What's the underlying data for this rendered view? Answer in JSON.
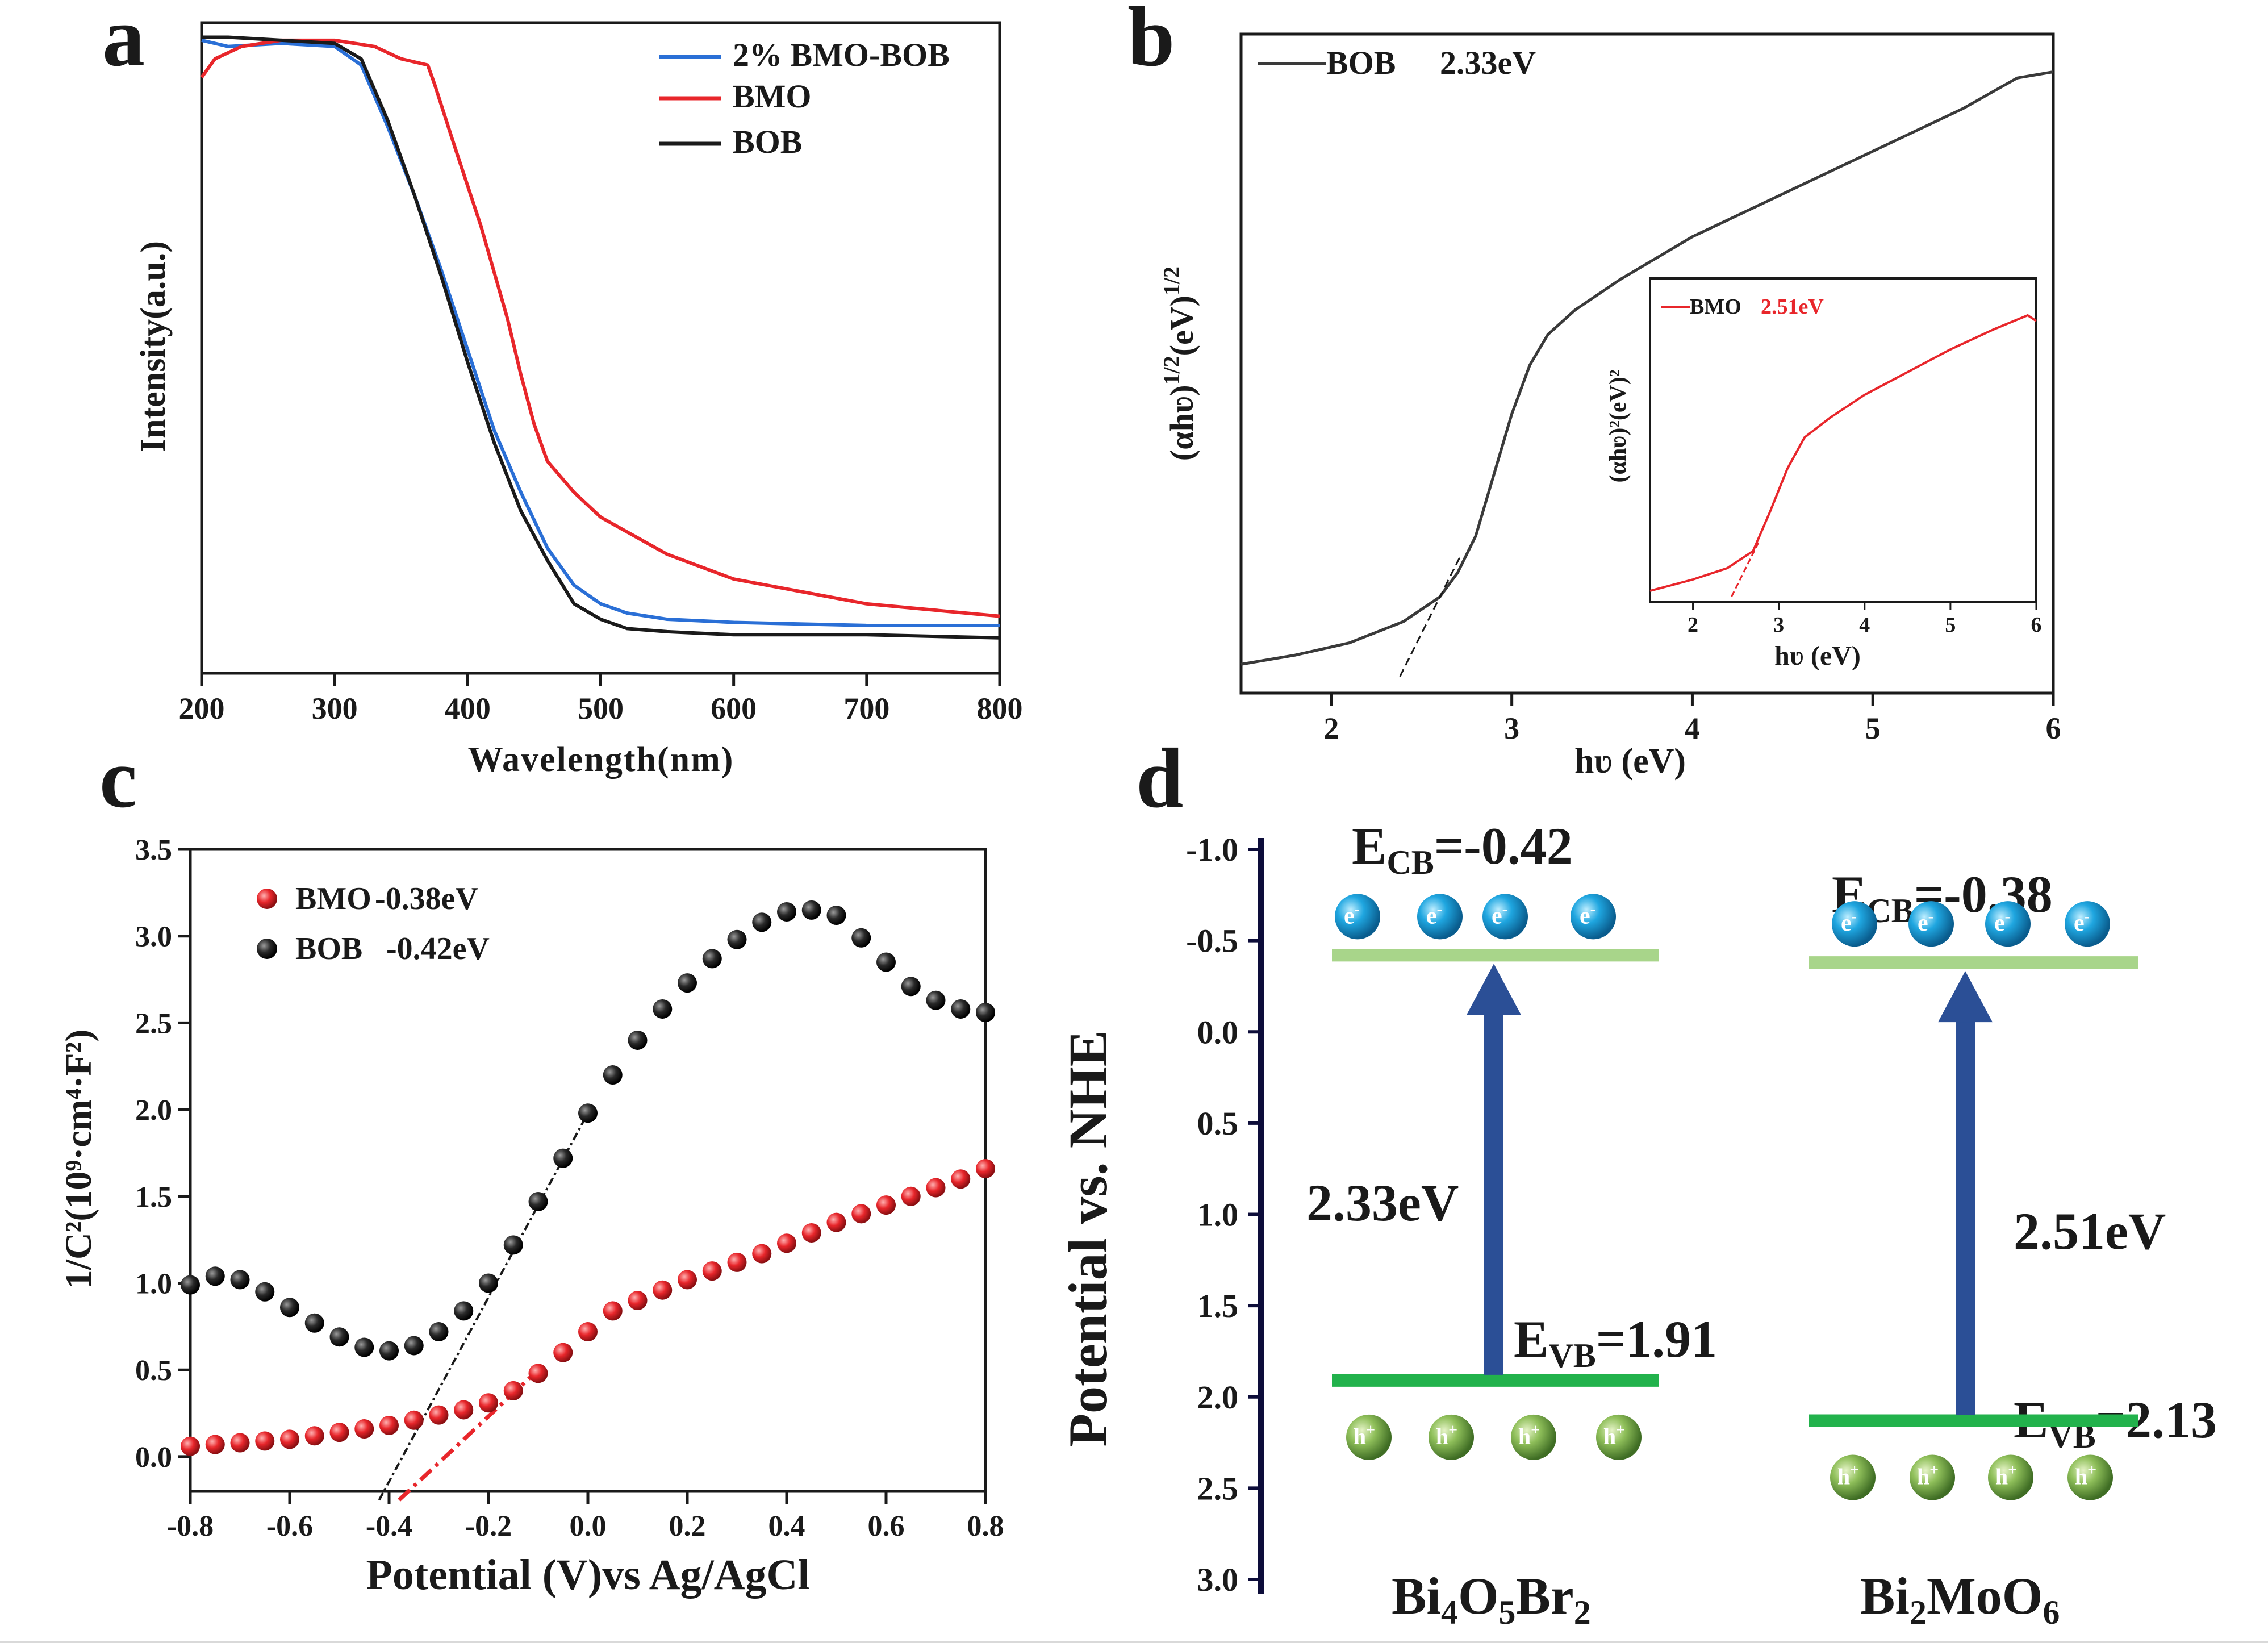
{
  "colors": {
    "blue": "#2a6fd6",
    "red": "#e8262b",
    "black": "#1a1a1a",
    "gray": "#3a3a3a",
    "band": "#a8d58a",
    "band2": "#22b24c",
    "arrow": "#2b4f96",
    "electron": "#1fa6e0",
    "hole": "#7fb24a"
  },
  "panels": {
    "a": {
      "label": "a",
      "ylabel": "Intensity(a.u.)",
      "xlabel": "Wavelength(nm)",
      "xticks": [
        "200",
        "300",
        "400",
        "500",
        "600",
        "700",
        "800"
      ]
    },
    "b": {
      "label": "b",
      "ylabel_main": "(αhʋ)",
      "ylabel_exp": "1/2",
      "ylabel_unit": "(eV)",
      "ylabel_exp2": "1/2",
      "xlabel": "hʋ (eV)",
      "xticks": [
        "2",
        "3",
        "4",
        "5",
        "6"
      ],
      "legend": "BOB",
      "legend_value": "2.33eV",
      "inset": {
        "legend": "BMO",
        "legend_value": "2.51eV",
        "ylabel": "(αhʋ)²(eV)²",
        "xlabel": "hʋ (eV)",
        "xticks": [
          "2",
          "3",
          "4",
          "5",
          "6"
        ]
      }
    },
    "c": {
      "label": "c",
      "ylabel": "1/C²(10⁹·cm⁴·F²)",
      "xlabel": "Potential (V)vs Ag/AgCl",
      "xticks": [
        "-0.8",
        "-0.6",
        "-0.4",
        "-0.2",
        "0.0",
        "0.2",
        "0.4",
        "0.6",
        "0.8"
      ],
      "yticks": [
        "0.0",
        "0.5",
        "1.0",
        "1.5",
        "2.0",
        "2.5",
        "3.0",
        "3.5"
      ],
      "legend": [
        {
          "name": "BMO",
          "value": "-0.38eV"
        },
        {
          "name": "BOB",
          "value": "-0.42eV"
        }
      ]
    },
    "d": {
      "label": "d",
      "ylabel": "Potential  vs. NHE",
      "yticks": [
        "-1.0",
        "-0.5",
        "0.0",
        "0.5",
        "1.0",
        "1.5",
        "2.0",
        "2.5",
        "3.0"
      ],
      "left": {
        "name": "Bi4O5Br2",
        "ecb_label": "E",
        "ecb_sub": "CB",
        "ecb_value": "=-0.42",
        "evb_label": "E",
        "evb_sub": "VB",
        "evb_value": "=1.91",
        "gap": "2.33eV"
      },
      "right": {
        "name": "Bi2MoO6",
        "ecb_label": "E",
        "ecb_sub": "CB",
        "ecb_value": "=-0.38",
        "evb_label": "E",
        "evb_sub": "VB",
        "evb_value": "=2.13",
        "gap": "2.51eV"
      },
      "electron_label": "e",
      "hole_label": "h"
    }
  },
  "chart_data": [
    {
      "type": "line",
      "title": "a",
      "xlabel": "Wavelength(nm)",
      "ylabel": "Intensity(a.u.)",
      "xlim": [
        200,
        800
      ],
      "ylim": [
        0,
        1
      ],
      "series": [
        {
          "name": "2% BMO-BOB",
          "color": "#2a6fd6",
          "x": [
            200,
            220,
            260,
            300,
            320,
            340,
            360,
            380,
            400,
            420,
            440,
            460,
            480,
            500,
            520,
            550,
            600,
            700,
            800
          ],
          "y": [
            0.99,
            0.98,
            0.985,
            0.98,
            0.95,
            0.85,
            0.74,
            0.62,
            0.49,
            0.36,
            0.26,
            0.17,
            0.11,
            0.08,
            0.065,
            0.055,
            0.05,
            0.045,
            0.045
          ]
        },
        {
          "name": "BMO",
          "color": "#e8262b",
          "x": [
            200,
            210,
            230,
            260,
            300,
            330,
            350,
            370,
            375,
            390,
            410,
            430,
            440,
            450,
            460,
            480,
            500,
            550,
            600,
            700,
            800
          ],
          "y": [
            0.93,
            0.96,
            0.98,
            0.99,
            0.99,
            0.98,
            0.96,
            0.95,
            0.92,
            0.82,
            0.69,
            0.54,
            0.45,
            0.37,
            0.31,
            0.26,
            0.22,
            0.16,
            0.12,
            0.08,
            0.06
          ]
        },
        {
          "name": "BOB",
          "color": "#1a1a1a",
          "x": [
            200,
            220,
            260,
            300,
            320,
            340,
            360,
            380,
            400,
            420,
            440,
            460,
            480,
            500,
            520,
            550,
            600,
            700,
            800
          ],
          "y": [
            0.995,
            0.995,
            0.99,
            0.985,
            0.96,
            0.86,
            0.74,
            0.61,
            0.47,
            0.34,
            0.23,
            0.15,
            0.08,
            0.055,
            0.04,
            0.035,
            0.03,
            0.03,
            0.025
          ]
        }
      ]
    },
    {
      "type": "line",
      "title": "b",
      "xlabel": "hʋ (eV)",
      "ylabel": "(αhʋ)^1/2 (eV)^1/2",
      "xlim": [
        1.5,
        6
      ],
      "ylim": [
        0,
        1
      ],
      "series": [
        {
          "name": "BOB 2.33eV",
          "color": "#3a3a3a",
          "x": [
            1.5,
            1.8,
            2.1,
            2.4,
            2.6,
            2.7,
            2.8,
            2.9,
            3.0,
            3.1,
            3.2,
            3.35,
            3.6,
            4.0,
            4.5,
            5.0,
            5.5,
            5.8,
            6.0
          ],
          "y": [
            0.01,
            0.025,
            0.045,
            0.08,
            0.12,
            0.16,
            0.22,
            0.32,
            0.42,
            0.5,
            0.55,
            0.59,
            0.64,
            0.71,
            0.78,
            0.85,
            0.92,
            0.97,
            0.98
          ]
        }
      ],
      "tangent": {
        "x": [
          2.38,
          2.72
        ],
        "y": [
          -0.01,
          0.19
        ]
      },
      "inset": {
        "name": "BMO 2.51eV",
        "color": "#e8262b",
        "xlim": [
          1.5,
          6
        ],
        "x": [
          1.5,
          2.0,
          2.4,
          2.7,
          2.9,
          3.1,
          3.3,
          3.6,
          4.0,
          4.5,
          5.0,
          5.5,
          5.9,
          6.0
        ],
        "y": [
          0.02,
          0.06,
          0.1,
          0.16,
          0.3,
          0.45,
          0.56,
          0.63,
          0.71,
          0.79,
          0.87,
          0.94,
          0.99,
          0.97
        ],
        "tangent": {
          "x": [
            2.45,
            2.78
          ],
          "y": [
            0.0,
            0.2
          ]
        }
      }
    },
    {
      "type": "scatter",
      "title": "c",
      "xlabel": "Potential (V)vs Ag/AgCl",
      "ylabel": "1/C²(10⁹·cm⁴·F²)",
      "xlim": [
        -0.8,
        0.8
      ],
      "ylim": [
        -0.2,
        3.5
      ],
      "series": [
        {
          "name": "BMO -0.38eV",
          "color": "#e8262b",
          "x": [
            -0.8,
            -0.75,
            -0.7,
            -0.65,
            -0.6,
            -0.55,
            -0.5,
            -0.45,
            -0.4,
            -0.35,
            -0.3,
            -0.25,
            -0.2,
            -0.15,
            -0.1,
            -0.05,
            0.0,
            0.05,
            0.1,
            0.15,
            0.2,
            0.25,
            0.3,
            0.35,
            0.4,
            0.45,
            0.5,
            0.55,
            0.6,
            0.65,
            0.7,
            0.75,
            0.8
          ],
          "y": [
            0.06,
            0.07,
            0.08,
            0.09,
            0.1,
            0.12,
            0.14,
            0.16,
            0.18,
            0.21,
            0.24,
            0.27,
            0.31,
            0.38,
            0.48,
            0.6,
            0.72,
            0.84,
            0.9,
            0.96,
            1.02,
            1.07,
            1.12,
            1.17,
            1.23,
            1.29,
            1.35,
            1.4,
            1.45,
            1.5,
            1.55,
            1.6,
            1.66
          ]
        },
        {
          "name": "BOB -0.42eV",
          "color": "#1a1a1a",
          "x": [
            -0.8,
            -0.75,
            -0.7,
            -0.65,
            -0.6,
            -0.55,
            -0.5,
            -0.45,
            -0.4,
            -0.35,
            -0.3,
            -0.25,
            -0.2,
            -0.15,
            -0.1,
            -0.05,
            0.0,
            0.05,
            0.1,
            0.15,
            0.2,
            0.25,
            0.3,
            0.35,
            0.4,
            0.45,
            0.5,
            0.55,
            0.6,
            0.65,
            0.7,
            0.75,
            0.8
          ],
          "y": [
            0.99,
            1.04,
            1.02,
            0.95,
            0.86,
            0.77,
            0.69,
            0.63,
            0.61,
            0.64,
            0.72,
            0.84,
            1.0,
            1.22,
            1.47,
            1.72,
            1.98,
            2.2,
            2.4,
            2.58,
            2.73,
            2.87,
            2.98,
            3.08,
            3.14,
            3.15,
            3.12,
            2.99,
            2.85,
            2.71,
            2.63,
            2.58,
            2.56
          ]
        }
      ],
      "tangents": [
        {
          "name": "BMO",
          "x": [
            -0.38,
            -0.1
          ],
          "y": [
            -0.25,
            0.5
          ]
        },
        {
          "name": "BOB",
          "x": [
            -0.42,
            0.0
          ],
          "y": [
            -0.25,
            1.98
          ]
        }
      ]
    },
    {
      "type": "band_diagram",
      "title": "d",
      "ylabel": "Potential  vs. NHE",
      "ylim": [
        -1.0,
        3.0
      ],
      "materials": [
        {
          "name": "Bi4O5Br2",
          "ECB": -0.42,
          "EVB": 1.91,
          "gap": 2.33
        },
        {
          "name": "Bi2MoO6",
          "ECB": -0.38,
          "EVB": 2.13,
          "gap": 2.51
        }
      ]
    }
  ]
}
